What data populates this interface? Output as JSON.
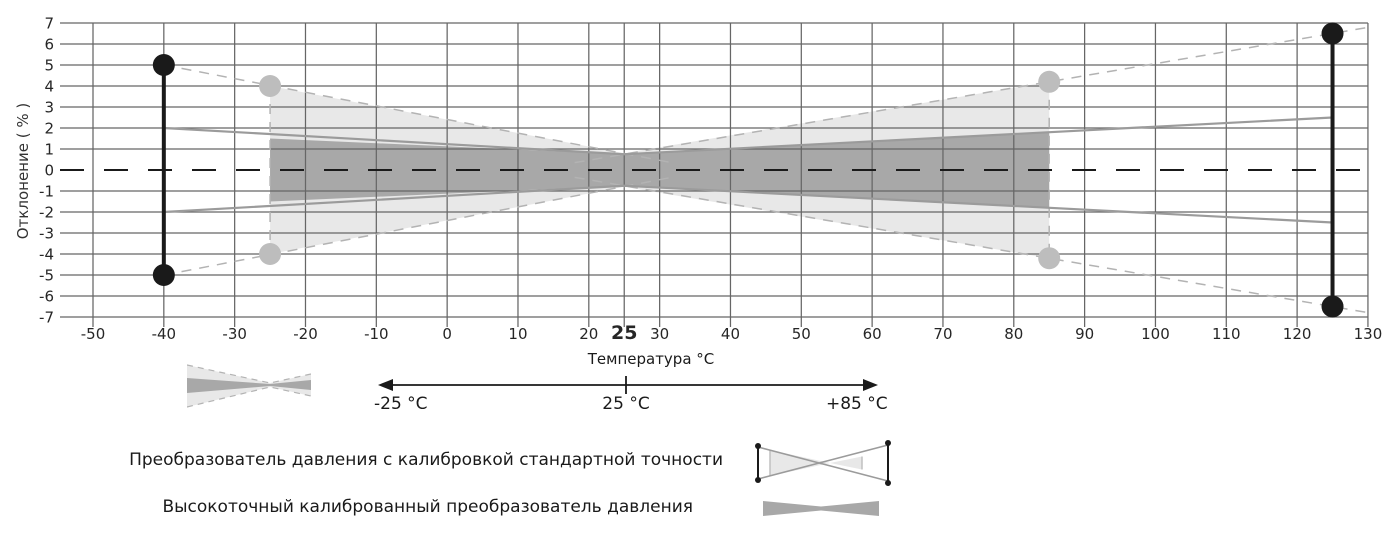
{
  "chart_data": {
    "type": "area",
    "title": "",
    "xlabel": "Температура °C",
    "ylabel": "Отклонение ( % )",
    "xlim": [
      -55,
      130
    ],
    "ylim": [
      -7,
      7
    ],
    "grid": true,
    "x_ticks": [
      -50,
      -40,
      -30,
      -20,
      -10,
      0,
      10,
      20,
      25,
      30,
      40,
      50,
      60,
      70,
      80,
      90,
      100,
      110,
      120,
      130
    ],
    "emphasized_x_tick": 25,
    "y_ticks": [
      7,
      6,
      5,
      4,
      3,
      2,
      1,
      0,
      -1,
      -2,
      -3,
      -4,
      -5,
      -6,
      -7
    ],
    "zero_line": {
      "style": "dashed",
      "color": "#1a1a1a"
    },
    "series": [
      {
        "name": "Преобразователь давления с калибровкой стандартной точности",
        "style": "light-band",
        "color": "#e8e8e8",
        "band": {
          "x": [
            -25,
            25,
            85
          ],
          "upper": [
            4,
            0.8,
            4.2
          ],
          "lower": [
            -4,
            -0.8,
            -4.2
          ]
        },
        "dashed_lines": [
          {
            "points": [
              [
                -40,
                5
              ],
              [
                32,
                0.33
              ]
            ]
          },
          {
            "points": [
              [
                -40,
                -5
              ],
              [
                32,
                -0.33
              ]
            ]
          },
          {
            "points": [
              [
                18,
                0.35
              ],
              [
                130,
                6.79
              ]
            ]
          },
          {
            "points": [
              [
                18,
                -0.35
              ],
              [
                130,
                -6.79
              ]
            ]
          },
          {
            "points": [
              [
                -25,
                4
              ],
              [
                -25,
                -4
              ]
            ]
          },
          {
            "points": [
              [
                85,
                4.2
              ],
              [
                85,
                -4.2
              ]
            ]
          }
        ],
        "range_bars": [
          {
            "x": -40,
            "from": -5,
            "to": 5
          },
          {
            "x": 125,
            "from": -6.5,
            "to": 6.5
          }
        ],
        "corner_dots": [
          {
            "x": -25,
            "y": 4
          },
          {
            "x": -25,
            "y": -4
          },
          {
            "x": 85,
            "y": 4.2
          },
          {
            "x": 85,
            "y": -4.2
          }
        ]
      },
      {
        "name": "Высокоточный калиброванный преобразователь давления",
        "style": "dark-band",
        "color": "#a8a8a8",
        "band": {
          "x": [
            -25,
            25,
            85
          ],
          "upper": [
            1.5,
            0.75,
            1.8
          ],
          "lower": [
            -1.5,
            -0.75,
            -1.8
          ]
        },
        "solid_lines": [
          {
            "points": [
              [
                -40,
                2
              ],
              [
                25,
                0.75
              ],
              [
                125,
                2.5
              ]
            ]
          },
          {
            "points": [
              [
                -40,
                -2
              ],
              [
                25,
                -0.75
              ],
              [
                125,
                -2.5
              ]
            ]
          }
        ]
      }
    ]
  },
  "axis": {
    "y_title": "Отклонение ( % )"
  },
  "temperature_scale": {
    "label": "Температура °C",
    "left": "-25 °C",
    "center": "25 °C",
    "right": "+85 °C"
  },
  "legend": [
    {
      "label": "Преобразователь давления с калибровкой стандартной точности"
    },
    {
      "label": "Высокоточный калиброванный преобразователь давления"
    }
  ],
  "colors": {
    "light_band": "#e8e8e8",
    "dark_band": "#a8a8a8",
    "grid": "#666666",
    "dashed_line": "#b3b3b3",
    "solid_line": "#9b9b9b",
    "black": "#1a1a1a",
    "gray_dot": "#bdbdbd",
    "tick_text": "#262626"
  }
}
